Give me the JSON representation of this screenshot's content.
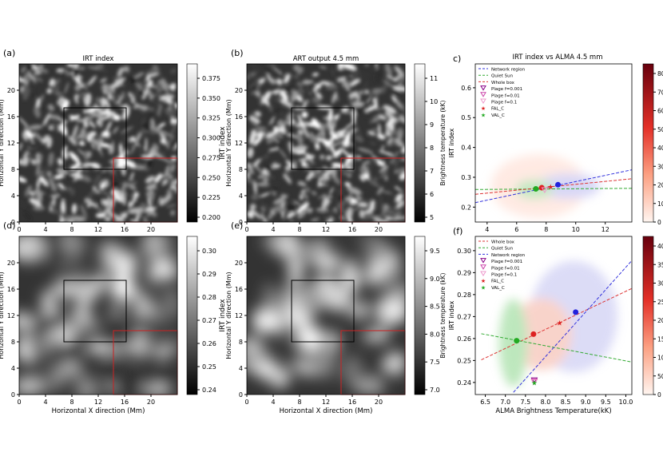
{
  "panels": {
    "a": {
      "tag": "(a)",
      "title": "IRT index",
      "cbar_label": "IRT index",
      "cbar_ticks": [
        "0.375",
        "0.350",
        "0.325",
        "0.300",
        "0.275",
        "0.250",
        "0.225",
        "0.200"
      ],
      "cbar_range": [
        0.2,
        0.39
      ],
      "seed": 1,
      "gray_lo": 0,
      "gray_hi": 255
    },
    "b": {
      "tag": "(b)",
      "title": "ART output 4.5 mm",
      "cbar_label": "Brightness temperature (kK)",
      "cbar_ticks": [
        "11",
        "10",
        "9",
        "8",
        "7",
        "6",
        "5"
      ],
      "cbar_range": [
        4.5,
        11.2
      ],
      "seed": 2,
      "gray_lo": 0,
      "gray_hi": 255
    },
    "d": {
      "tag": "(d)",
      "title": "",
      "cbar_label": "IRT index",
      "cbar_ticks": [
        "0.30",
        "0.29",
        "0.28",
        "0.27",
        "0.26",
        "0.25",
        "0.24"
      ],
      "cbar_range": [
        0.24,
        0.3
      ],
      "seed": 3,
      "gray_lo": 0,
      "gray_hi": 255
    },
    "e": {
      "tag": "(e)",
      "title": "",
      "cbar_label": "Brightness temperature (kK)",
      "cbar_ticks": [
        "9.5",
        "9.0",
        "8.5",
        "8.0",
        "7.5",
        "7.0"
      ],
      "cbar_range": [
        6.6,
        9.8
      ],
      "seed": 4,
      "gray_lo": 0,
      "gray_hi": 255
    },
    "c": {
      "tag": "c)",
      "title": "IRT index vs ALMA 4.5 mm",
      "ylabel": "IRT index",
      "xticks": [
        "4",
        "6",
        "8",
        "10",
        "12"
      ],
      "yticks": [
        "0.6",
        "0.5",
        "0.4",
        "0.3",
        "0.2"
      ],
      "cbar_ticks": [
        "80",
        "70",
        "60",
        "50",
        "40",
        "30",
        "20",
        "10",
        "0"
      ]
    },
    "f": {
      "tag": "(f)",
      "title": "",
      "ylabel": "IRT index",
      "xlabel": "ALMA Brightness Temperature(kK)",
      "xticks": [
        "6.5",
        "7.0",
        "7.5",
        "8.0",
        "8.5",
        "9.0",
        "9.5",
        "10.0"
      ],
      "yticks": [
        "0.30",
        "0.29",
        "0.28",
        "0.27",
        "0.26",
        "0.25",
        "0.24"
      ],
      "cbar_ticks": [
        "400",
        "350",
        "300",
        "250",
        "200",
        "150",
        "100",
        "50",
        "0"
      ]
    }
  },
  "map_axes": {
    "xlabel": "Horizontal X direction (Mm)",
    "ylabel": "Horizontal Y direction (Mm)",
    "xticks": [
      "0",
      "4",
      "8",
      "12",
      "16",
      "20"
    ],
    "yticks": [
      "20",
      "16",
      "12",
      "8",
      "4",
      "0"
    ]
  },
  "legend_c": [
    {
      "label": "Network region",
      "kind": "dash",
      "color": "#3333dd"
    },
    {
      "label": "Quiet Sun",
      "kind": "dash",
      "color": "#33aa33"
    },
    {
      "label": "Whole box",
      "kind": "dash",
      "color": "#dd3333"
    },
    {
      "label": "Plage f=0.001",
      "kind": "tri",
      "color": "#880088"
    },
    {
      "label": "Plage f=0.01",
      "kind": "tri",
      "color": "#cc44aa"
    },
    {
      "label": "Plage f=0.1",
      "kind": "tri",
      "color": "#ee99cc"
    },
    {
      "label": "FAL_C",
      "kind": "star",
      "color": "#dd2222"
    },
    {
      "label": "VAL_C",
      "kind": "star",
      "color": "#22aa22"
    }
  ],
  "legend_f": [
    {
      "label": "Whole box",
      "kind": "dash",
      "color": "#dd3333"
    },
    {
      "label": "Quiet Sun",
      "kind": "dash",
      "color": "#33aa33"
    },
    {
      "label": "Network region",
      "kind": "dash",
      "color": "#3333dd"
    },
    {
      "label": "Plage f=0.001",
      "kind": "tri",
      "color": "#880088"
    },
    {
      "label": "Plage f=0.01",
      "kind": "tri",
      "color": "#cc44aa"
    },
    {
      "label": "Plage f=0.1",
      "kind": "tri",
      "color": "#ee99cc"
    },
    {
      "label": "FAL_C",
      "kind": "star",
      "color": "#dd2222"
    },
    {
      "label": "VAL_C",
      "kind": "star",
      "color": "#22aa22"
    }
  ],
  "chart_data": [
    {
      "type": "heatmap",
      "panel": "a",
      "title": "IRT index",
      "xlabel": "",
      "ylabel": "Horizontal Y direction (Mm)",
      "colorbar": "IRT index",
      "xlim": [
        0,
        24
      ],
      "ylim": [
        0,
        24
      ],
      "clim": [
        0.2,
        0.39
      ],
      "boxes": [
        {
          "color": "black",
          "x": [
            6.8,
            15.7
          ],
          "y": [
            7.6,
            17.5
          ]
        },
        {
          "color": "red",
          "x": [
            14.6,
            24
          ],
          "y": [
            0,
            9.9
          ]
        }
      ]
    },
    {
      "type": "heatmap",
      "panel": "b",
      "title": "ART output 4.5 mm",
      "xlabel": "",
      "ylabel": "Horizontal Y direction (Mm)",
      "colorbar": "Brightness temperature (kK)",
      "xlim": [
        0,
        24
      ],
      "ylim": [
        0,
        24
      ],
      "clim": [
        4.5,
        11.2
      ]
    },
    {
      "type": "heatmap",
      "panel": "d",
      "title": "",
      "xlabel": "Horizontal X direction (Mm)",
      "ylabel": "Horizontal Y direction (Mm)",
      "colorbar": "IRT index",
      "xlim": [
        0,
        24
      ],
      "ylim": [
        0,
        24
      ],
      "clim": [
        0.24,
        0.3
      ]
    },
    {
      "type": "heatmap",
      "panel": "e",
      "title": "",
      "xlabel": "Horizontal X direction (Mm)",
      "ylabel": "Horizontal Y direction (Mm)",
      "colorbar": "Brightness temperature (kK)",
      "xlim": [
        0,
        24
      ],
      "ylim": [
        0,
        24
      ],
      "clim": [
        6.6,
        9.8
      ]
    },
    {
      "type": "scatter",
      "panel": "c",
      "title": "IRT index vs ALMA 4.5 mm",
      "xlabel": "",
      "ylabel": "IRT index",
      "xlim": [
        3.2,
        13.8
      ],
      "ylim": [
        0.15,
        0.68
      ],
      "colorbar_range": [
        0,
        88
      ],
      "fits": [
        {
          "name": "Network region",
          "color": "#3333dd",
          "x": [
            3.2,
            13.8
          ],
          "y": [
            0.215,
            0.325
          ]
        },
        {
          "name": "Quiet Sun",
          "color": "#33aa33",
          "x": [
            3.2,
            13.8
          ],
          "y": [
            0.259,
            0.263
          ]
        },
        {
          "name": "Whole box",
          "color": "#dd3333",
          "x": [
            3.2,
            13.8
          ],
          "y": [
            0.243,
            0.295
          ]
        }
      ],
      "points": [
        {
          "x": 7.3,
          "y": 0.261,
          "color": "#22aa22",
          "marker": "circle"
        },
        {
          "x": 7.7,
          "y": 0.265,
          "color": "#dd2222",
          "marker": "circle"
        },
        {
          "x": 8.8,
          "y": 0.275,
          "color": "#2222dd",
          "marker": "circle"
        },
        {
          "x": 8.3,
          "y": 0.268,
          "color": "#dd2222",
          "marker": "star"
        },
        {
          "x": 7.9,
          "y": 0.257,
          "color": "#ee99cc",
          "marker": "tri"
        }
      ]
    },
    {
      "type": "scatter",
      "panel": "f",
      "title": "",
      "xlabel": "ALMA Brightness Temperature(kK)",
      "ylabel": "IRT index",
      "xlim": [
        6.25,
        10.15
      ],
      "ylim": [
        0.2345,
        0.3065
      ],
      "colorbar_range": [
        0,
        430
      ],
      "fits": [
        {
          "name": "Whole box",
          "color": "#dd3333",
          "x": [
            6.4,
            10.15
          ],
          "y": [
            0.2503,
            0.2828
          ]
        },
        {
          "name": "Quiet Sun",
          "color": "#33aa33",
          "x": [
            6.4,
            10.15
          ],
          "y": [
            0.2622,
            0.2493
          ]
        },
        {
          "name": "Network region",
          "color": "#3333dd",
          "x": [
            7.2,
            10.15
          ],
          "y": [
            0.2355,
            0.2955
          ]
        }
      ],
      "points": [
        {
          "x": 7.28,
          "y": 0.259,
          "color": "#22aa22",
          "marker": "circle"
        },
        {
          "x": 7.7,
          "y": 0.262,
          "color": "#dd2222",
          "marker": "circle"
        },
        {
          "x": 8.75,
          "y": 0.272,
          "color": "#2222dd",
          "marker": "circle"
        },
        {
          "x": 8.35,
          "y": 0.267,
          "color": "#dd2222",
          "marker": "star"
        },
        {
          "x": 7.72,
          "y": 0.241,
          "color": "#880088",
          "marker": "tri"
        },
        {
          "x": 7.72,
          "y": 0.2405,
          "color": "#cc44aa",
          "marker": "tri"
        },
        {
          "x": 7.72,
          "y": 0.2402,
          "color": "#ee99cc",
          "marker": "tri"
        },
        {
          "x": 7.72,
          "y": 0.2398,
          "color": "#22aa22",
          "marker": "star"
        }
      ]
    }
  ]
}
